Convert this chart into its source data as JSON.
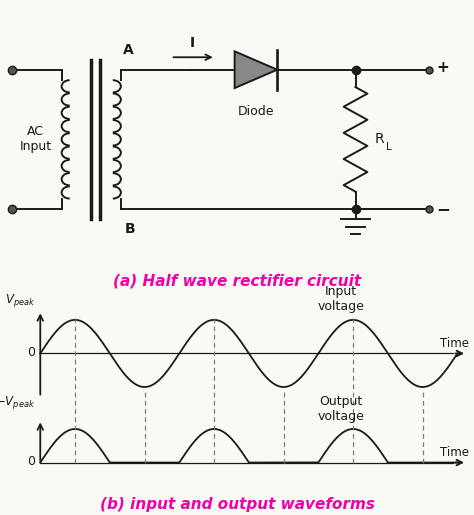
{
  "title_circuit": "(a) Half wave rectifier circuit",
  "title_waveforms": "(b) input and output waveforms",
  "title_color": "#EE00AA",
  "bg_color": "#FAFAF5",
  "line_color": "#1a1a1a",
  "label_A": "A",
  "label_B": "B",
  "label_I": "I",
  "label_Diode": "Diode",
  "label_RL": "R",
  "label_L": "L",
  "label_AC": "AC\nInput",
  "label_plus": "+",
  "label_minus": "−",
  "label_0_top": "0",
  "label_0_bot": "0",
  "label_Time_top": "Time",
  "label_Time_bot": "Time",
  "label_Input_voltage": "Input\nvoltage",
  "label_Output_voltage": "Output\nvoltage",
  "waveform_color": "#1a1a1a",
  "dashed_color": "#777777",
  "figwidth": 4.74,
  "figheight": 5.15,
  "dpi": 100
}
